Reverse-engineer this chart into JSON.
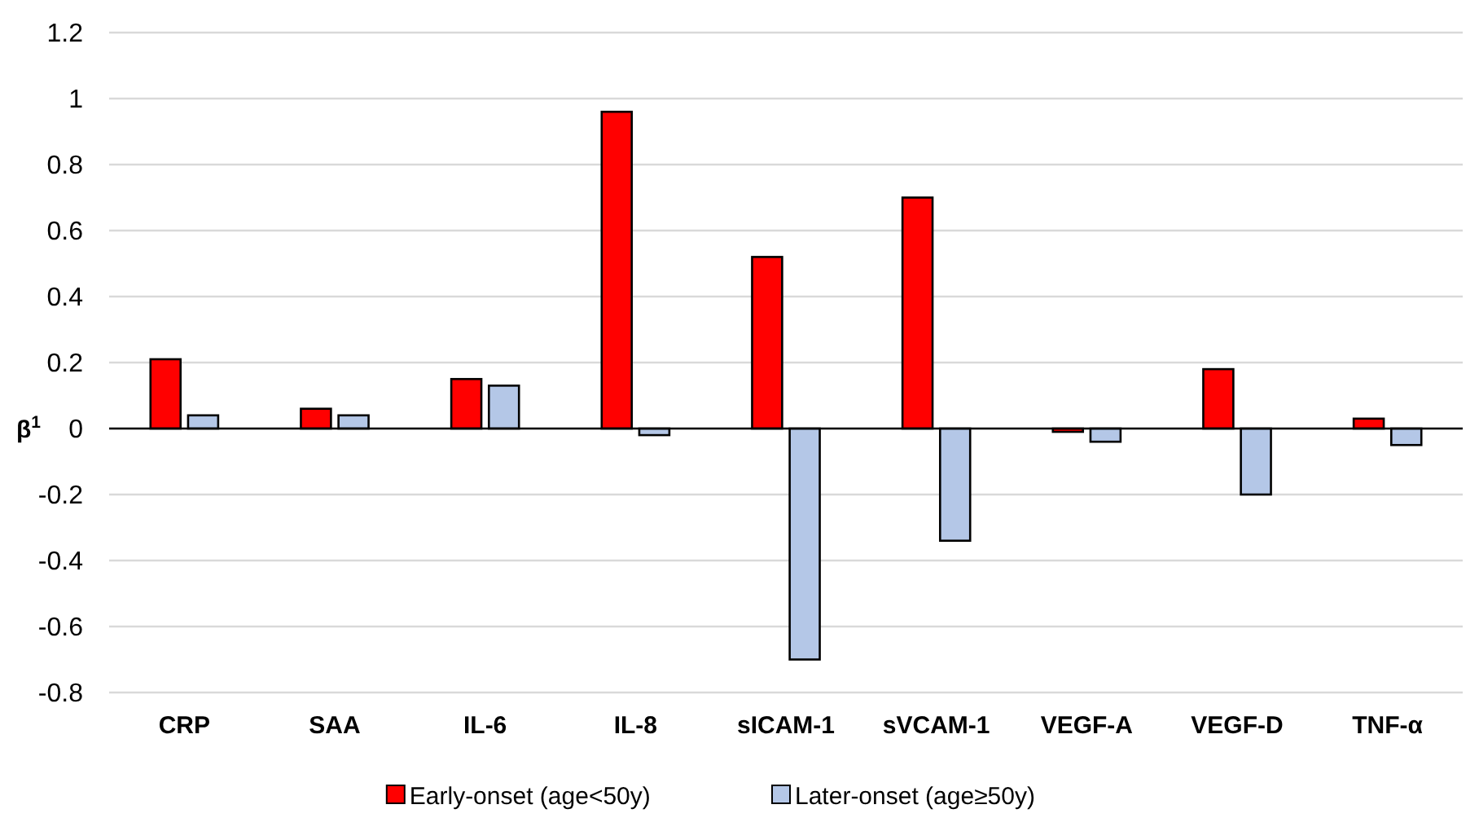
{
  "chart_data": {
    "type": "bar",
    "ylabel": "β$^{1}$",
    "categories": [
      "CRP",
      "SAA",
      "IL-6",
      "IL-8",
      "sICAM-1",
      "sVCAM-1",
      "VEGF-A",
      "VEGF-D",
      "TNF-α"
    ],
    "series": [
      {
        "name": "Early-onset (age<50y)",
        "color": "#ff0000",
        "values": [
          0.21,
          0.06,
          0.15,
          0.96,
          0.52,
          0.7,
          -0.01,
          0.18,
          0.03
        ]
      },
      {
        "name": "Later-onset (age≥50y)",
        "color": "#b4c7e7",
        "values": [
          0.04,
          0.04,
          0.13,
          -0.02,
          -0.7,
          -0.34,
          -0.04,
          -0.2,
          -0.05
        ]
      }
    ],
    "ylim": [
      -0.8,
      1.2
    ],
    "yticks": [
      {
        "value": -0.8,
        "label": "-0.8"
      },
      {
        "value": -0.6,
        "label": "-0.6"
      },
      {
        "value": -0.4,
        "label": "-0.4"
      },
      {
        "value": -0.2,
        "label": "-0.2"
      },
      0,
      0.2,
      0.4,
      0.6,
      0.8,
      1,
      1.2
    ],
    "grid": "y",
    "legend": "bottom"
  }
}
